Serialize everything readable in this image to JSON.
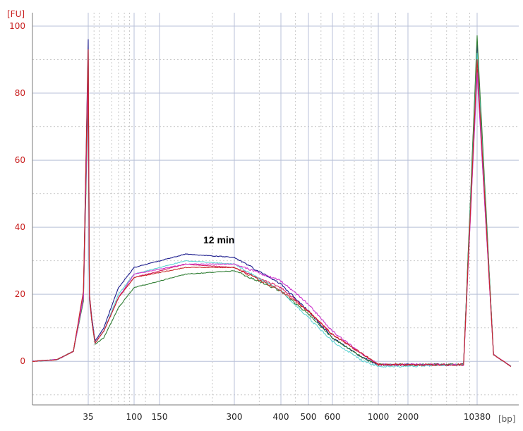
{
  "chart_data": {
    "type": "line",
    "title": "",
    "ylabel": "[FU]",
    "xlabel": "[bp]",
    "ylim": [
      -13,
      104
    ],
    "x_scale": "categorical-ladder",
    "x_ticks": [
      "35",
      "100",
      "150",
      "300",
      "400",
      "500",
      "600",
      "1000",
      "2000",
      "10380"
    ],
    "y_ticks": [
      "0",
      "20",
      "40",
      "60",
      "80",
      "100"
    ],
    "grid": true,
    "annotation": "12 min",
    "marker_peaks": [
      {
        "x": "35",
        "height": 96
      },
      {
        "x": "10380",
        "height": 97
      }
    ],
    "series": [
      {
        "color": "#1a1a8c",
        "values": [
          [
            25,
            0
          ],
          [
            29,
            0.5
          ],
          [
            32,
            3
          ],
          [
            34,
            20
          ],
          [
            35,
            96
          ],
          [
            36,
            20
          ],
          [
            38,
            13
          ],
          [
            41,
            6
          ],
          [
            50,
            10
          ],
          [
            70,
            22
          ],
          [
            100,
            28
          ],
          [
            200,
            32
          ],
          [
            300,
            31
          ],
          [
            400,
            23
          ],
          [
            500,
            15
          ],
          [
            600,
            7
          ],
          [
            800,
            1
          ],
          [
            1000,
            -1
          ],
          [
            2000,
            -1
          ],
          [
            5000,
            -1
          ],
          [
            8000,
            -1
          ],
          [
            10380,
            95
          ],
          [
            12000,
            2
          ],
          [
            14000,
            -1.5
          ]
        ]
      },
      {
        "color": "#d81b60",
        "values": [
          [
            25,
            0
          ],
          [
            29,
            0.5
          ],
          [
            32,
            3
          ],
          [
            34,
            20
          ],
          [
            35,
            90
          ],
          [
            36,
            20
          ],
          [
            38,
            12
          ],
          [
            41,
            5.5
          ],
          [
            50,
            9
          ],
          [
            70,
            19
          ],
          [
            100,
            25
          ],
          [
            200,
            29
          ],
          [
            300,
            28
          ],
          [
            400,
            22
          ],
          [
            500,
            15
          ],
          [
            600,
            8
          ],
          [
            800,
            2
          ],
          [
            1000,
            -1
          ],
          [
            2000,
            -1
          ],
          [
            5000,
            -1
          ],
          [
            8000,
            -1
          ],
          [
            10380,
            87
          ],
          [
            12000,
            2
          ],
          [
            14000,
            -1.5
          ]
        ]
      },
      {
        "color": "#2e7d32",
        "values": [
          [
            25,
            0
          ],
          [
            29,
            0.5
          ],
          [
            32,
            3
          ],
          [
            34,
            18
          ],
          [
            35,
            80
          ],
          [
            36,
            18
          ],
          [
            38,
            12
          ],
          [
            41,
            5
          ],
          [
            50,
            7
          ],
          [
            70,
            16
          ],
          [
            100,
            22
          ],
          [
            200,
            26
          ],
          [
            300,
            27
          ],
          [
            400,
            21
          ],
          [
            500,
            14
          ],
          [
            600,
            7
          ],
          [
            800,
            1
          ],
          [
            1000,
            -1
          ],
          [
            2000,
            -1
          ],
          [
            5000,
            -1
          ],
          [
            8000,
            -1
          ],
          [
            10380,
            97
          ],
          [
            12000,
            2
          ],
          [
            14000,
            -1.5
          ]
        ]
      },
      {
        "color": "#5fd3d3",
        "values": [
          [
            25,
            0
          ],
          [
            29,
            0.5
          ],
          [
            32,
            3
          ],
          [
            34,
            19
          ],
          [
            35,
            88
          ],
          [
            36,
            19
          ],
          [
            38,
            12
          ],
          [
            41,
            5.5
          ],
          [
            50,
            9
          ],
          [
            70,
            20
          ],
          [
            100,
            26
          ],
          [
            200,
            30
          ],
          [
            300,
            29
          ],
          [
            400,
            21
          ],
          [
            500,
            13
          ],
          [
            600,
            6
          ],
          [
            800,
            0
          ],
          [
            1000,
            -1.5
          ],
          [
            2000,
            -1.5
          ],
          [
            5000,
            -1
          ],
          [
            8000,
            -1
          ],
          [
            10380,
            92
          ],
          [
            12000,
            2
          ],
          [
            14000,
            -1.5
          ]
        ]
      },
      {
        "color": "#cc33cc",
        "values": [
          [
            25,
            0
          ],
          [
            29,
            0.5
          ],
          [
            32,
            3
          ],
          [
            34,
            19
          ],
          [
            35,
            85
          ],
          [
            36,
            19
          ],
          [
            38,
            12
          ],
          [
            41,
            5.5
          ],
          [
            50,
            9
          ],
          [
            70,
            19
          ],
          [
            100,
            26
          ],
          [
            200,
            29
          ],
          [
            300,
            29
          ],
          [
            400,
            24
          ],
          [
            500,
            17
          ],
          [
            600,
            9
          ],
          [
            800,
            2
          ],
          [
            1000,
            -1
          ],
          [
            2000,
            -1
          ],
          [
            5000,
            -1
          ],
          [
            8000,
            -1
          ],
          [
            10380,
            86
          ],
          [
            12000,
            2
          ],
          [
            14000,
            -1.5
          ]
        ]
      },
      {
        "color": "#c62828",
        "values": [
          [
            25,
            0
          ],
          [
            29,
            0.5
          ],
          [
            32,
            3
          ],
          [
            34,
            21
          ],
          [
            35,
            93
          ],
          [
            36,
            20
          ],
          [
            38,
            12
          ],
          [
            41,
            5.5
          ],
          [
            50,
            9
          ],
          [
            70,
            19
          ],
          [
            100,
            25
          ],
          [
            200,
            28
          ],
          [
            300,
            28
          ],
          [
            400,
            21
          ],
          [
            500,
            15
          ],
          [
            600,
            8
          ],
          [
            800,
            2
          ],
          [
            1000,
            -1
          ],
          [
            2000,
            -1
          ],
          [
            5000,
            -1
          ],
          [
            8000,
            -1
          ],
          [
            10380,
            90
          ],
          [
            12000,
            2
          ],
          [
            14000,
            -1.5
          ]
        ]
      }
    ]
  }
}
